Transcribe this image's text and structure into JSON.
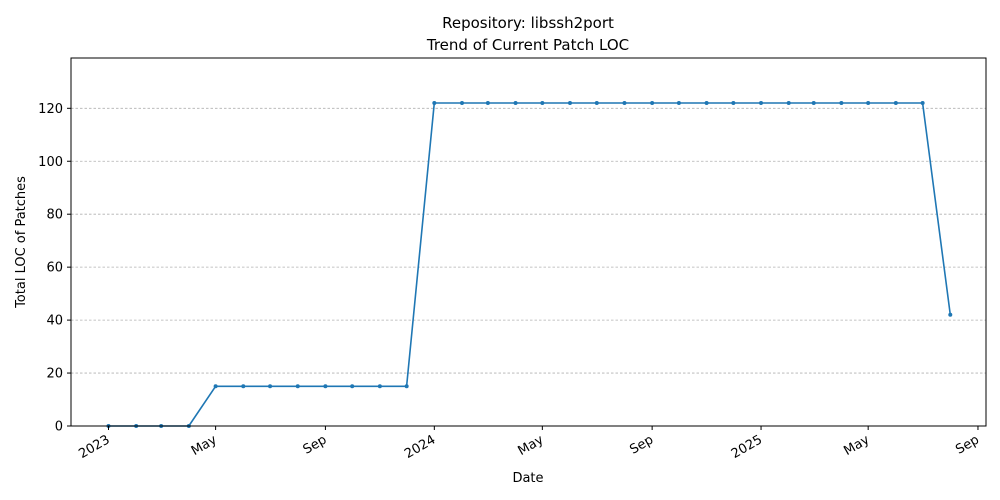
{
  "chart_data": {
    "type": "line",
    "title": "Repository: libssh2port",
    "subtitle": "Trend of Current Patch LOC",
    "xlabel": "Date",
    "ylabel": "Total LOC of Patches",
    "ylim": [
      0,
      139
    ],
    "xlim": [
      "2022-11-20",
      "2025-09-10"
    ],
    "grid": "y-dashed",
    "series_color": "#1f77b4",
    "y_ticks": [
      0,
      20,
      40,
      60,
      80,
      100,
      120
    ],
    "x_ticks": [
      {
        "date": "2023-01-01",
        "label": "2023"
      },
      {
        "date": "2023-05-01",
        "label": "May"
      },
      {
        "date": "2023-09-01",
        "label": "Sep"
      },
      {
        "date": "2024-01-01",
        "label": "2024"
      },
      {
        "date": "2024-05-01",
        "label": "May"
      },
      {
        "date": "2024-09-01",
        "label": "Sep"
      },
      {
        "date": "2025-01-01",
        "label": "2025"
      },
      {
        "date": "2025-05-01",
        "label": "May"
      },
      {
        "date": "2025-09-01",
        "label": "Sep"
      }
    ],
    "series": [
      {
        "x": [
          "2023-01-01",
          "2023-02-01",
          "2023-03-01",
          "2023-04-01",
          "2023-05-01",
          "2023-06-01",
          "2023-07-01",
          "2023-08-01",
          "2023-09-01",
          "2023-10-01",
          "2023-11-01",
          "2023-12-01",
          "2024-01-01",
          "2024-02-01",
          "2024-03-01",
          "2024-04-01",
          "2024-05-01",
          "2024-06-01",
          "2024-07-01",
          "2024-08-01",
          "2024-09-01",
          "2024-10-01",
          "2024-11-01",
          "2024-12-01",
          "2025-01-01",
          "2025-02-01",
          "2025-03-01",
          "2025-04-01",
          "2025-05-01",
          "2025-06-01",
          "2025-07-01",
          "2025-08-01"
        ],
        "values": [
          0,
          0,
          0,
          0,
          15,
          15,
          15,
          15,
          15,
          15,
          15,
          15,
          122,
          122,
          122,
          122,
          122,
          122,
          122,
          122,
          122,
          122,
          122,
          122,
          122,
          122,
          122,
          122,
          122,
          122,
          122,
          42
        ]
      }
    ]
  }
}
